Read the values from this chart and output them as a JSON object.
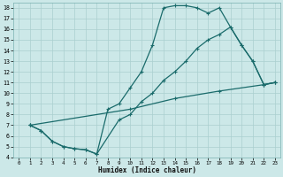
{
  "bg_color": "#cce8e8",
  "grid_color": "#aacfcf",
  "line_color": "#1a6b6b",
  "marker": "+",
  "markersize": 3,
  "linewidth": 0.9,
  "xlabel": "Humidex (Indice chaleur)",
  "xlim": [
    -0.5,
    23.5
  ],
  "ylim": [
    4,
    18.5
  ],
  "xticks": [
    0,
    1,
    2,
    3,
    4,
    5,
    6,
    7,
    8,
    9,
    10,
    11,
    12,
    13,
    14,
    15,
    16,
    17,
    18,
    19,
    20,
    21,
    22,
    23
  ],
  "yticks": [
    4,
    5,
    6,
    7,
    8,
    9,
    10,
    11,
    12,
    13,
    14,
    15,
    16,
    17,
    18
  ],
  "curve1_x": [
    1,
    2,
    3,
    4,
    5,
    6,
    7,
    8,
    9,
    10,
    11,
    12,
    13,
    14,
    15,
    16,
    17,
    18,
    19,
    20,
    21,
    22,
    23
  ],
  "curve1_y": [
    7.0,
    6.5,
    5.5,
    5.0,
    4.8,
    4.7,
    4.3,
    8.5,
    9.0,
    10.5,
    12.0,
    14.5,
    18.0,
    18.2,
    18.2,
    18.0,
    17.5,
    18.0,
    16.2,
    14.5,
    13.0,
    10.8,
    11.0
  ],
  "curve2_x": [
    1,
    2,
    3,
    4,
    5,
    6,
    7,
    9,
    10,
    11,
    12,
    13,
    14,
    15,
    16,
    17,
    18,
    19,
    20,
    21,
    22,
    23
  ],
  "curve2_y": [
    7.0,
    6.5,
    5.5,
    5.0,
    4.8,
    4.7,
    4.3,
    7.5,
    8.0,
    9.2,
    10.0,
    11.2,
    12.0,
    13.0,
    14.2,
    15.0,
    15.5,
    16.2,
    14.5,
    13.0,
    10.8,
    11.0
  ],
  "curve3_x": [
    1,
    10,
    14,
    18,
    22,
    23
  ],
  "curve3_y": [
    7.0,
    8.5,
    9.5,
    10.2,
    10.8,
    11.0
  ]
}
